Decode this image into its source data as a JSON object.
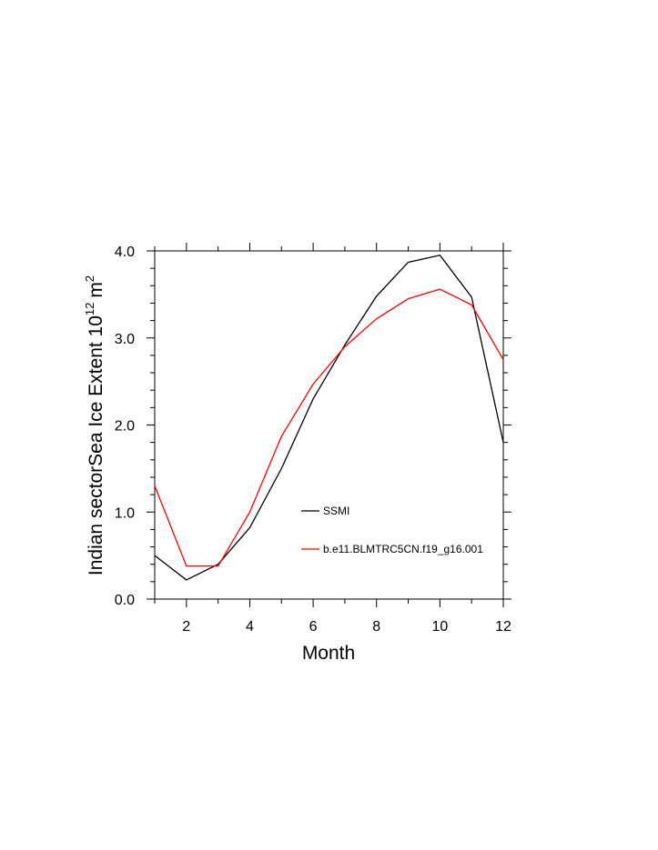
{
  "chart_data": {
    "type": "line",
    "title": "",
    "xlabel": "Month",
    "ylabel": "Indian sectorSea Ice Extent 10",
    "ylabel_exp1": "12",
    "ylabel_unit": "m",
    "ylabel_exp2": "2",
    "xlim": [
      1,
      12
    ],
    "ylim": [
      0,
      4
    ],
    "xticks": [
      2,
      4,
      6,
      8,
      10,
      12
    ],
    "xtick_labels": [
      "2",
      "4",
      "6",
      "8",
      "10",
      "12"
    ],
    "yticks": [
      0,
      1,
      2,
      3,
      4
    ],
    "ytick_labels": [
      "0.0",
      "1.0",
      "2.0",
      "3.0",
      "4.0"
    ],
    "x": [
      1,
      2,
      3,
      4,
      5,
      6,
      7,
      8,
      9,
      10,
      11,
      12
    ],
    "series": [
      {
        "name": "SSMI",
        "color": "#000000",
        "values": [
          0.5,
          0.22,
          0.4,
          0.82,
          1.5,
          2.3,
          2.92,
          3.48,
          3.87,
          3.95,
          3.47,
          1.8
        ]
      },
      {
        "name": "b.e11.BLMTRC5CN.f19_g16.001",
        "color": "#ff0000",
        "values": [
          1.3,
          0.38,
          0.38,
          1.0,
          1.87,
          2.47,
          2.9,
          3.22,
          3.45,
          3.56,
          3.38,
          2.75
        ]
      }
    ],
    "legend_position": "lower-center",
    "grid": false
  }
}
